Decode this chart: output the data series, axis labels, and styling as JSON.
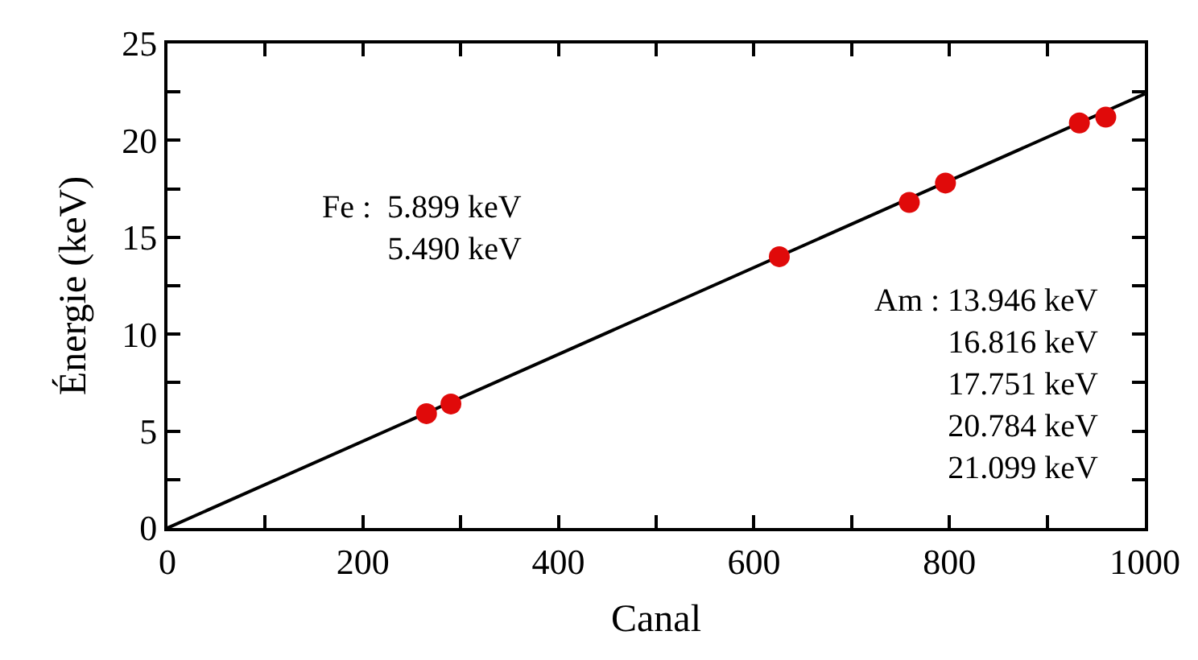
{
  "chart_data": {
    "type": "scatter",
    "xlabel": "Canal",
    "ylabel": "Énergie (keV)",
    "series": [
      {
        "type": "line",
        "color": "#000000",
        "x": [
          0,
          1000
        ],
        "values": [
          0,
          22.4
        ],
        "marker": "none",
        "line_style": "solid"
      },
      {
        "color": "#e00a0a",
        "marker": "circle",
        "x": [
          265,
          290,
          626,
          759,
          796,
          933,
          960
        ],
        "values": [
          5.9,
          6.4,
          14.0,
          16.8,
          17.8,
          20.9,
          21.2
        ]
      }
    ],
    "xlim": [
      0,
      1000
    ],
    "ylim": [
      0,
      25
    ],
    "xticks": [
      0,
      {
        "value": 100,
        "label": null
      },
      200,
      {
        "value": 300,
        "label": null
      },
      400,
      {
        "value": 500,
        "label": null
      },
      600,
      {
        "value": 700,
        "label": null
      },
      800,
      {
        "value": 900,
        "label": null
      },
      1000
    ],
    "yticks": [
      0,
      {
        "value": 2.5,
        "label": null
      },
      5,
      {
        "value": 7.5,
        "label": null
      },
      10,
      {
        "value": 12.5,
        "label": null
      },
      15,
      {
        "value": 17.5,
        "label": null
      },
      20,
      {
        "value": 22.5,
        "label": null
      },
      25
    ],
    "annotations": [
      "Fe :  5.899 keV\n5.490 keV",
      "Am : 13.946 keV\n16.816 keV\n17.751 keV\n20.784 keV\n21.099 keV"
    ]
  }
}
